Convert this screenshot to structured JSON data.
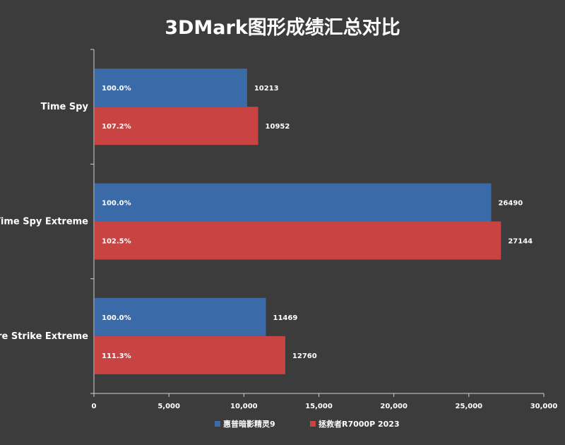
{
  "chart_data": {
    "type": "bar",
    "orientation": "horizontal",
    "title": "3DMark图形成绩汇总对比",
    "categories": [
      "Time Spy",
      "Time Spy Extreme",
      "Fire Strike Extreme"
    ],
    "series": [
      {
        "name": "惠普暗影精灵9",
        "color": "#3a6ba8",
        "values": [
          10213,
          26490,
          11469
        ],
        "percent_labels": [
          "100.0%",
          "100.0%",
          "100.0%"
        ]
      },
      {
        "name": "拯救者R7000P 2023",
        "color": "#c84443",
        "values": [
          10952,
          27144,
          12760
        ],
        "percent_labels": [
          "107.2%",
          "102.5%",
          "111.3%"
        ]
      }
    ],
    "xlim": [
      0,
      30000
    ],
    "xticks": [
      0,
      5000,
      10000,
      15000,
      20000,
      25000,
      30000
    ],
    "xtick_labels": [
      "0",
      "5,000",
      "10,000",
      "15,000",
      "20,000",
      "25,000",
      "30,000"
    ],
    "grid": false,
    "legend_position": "bottom"
  }
}
